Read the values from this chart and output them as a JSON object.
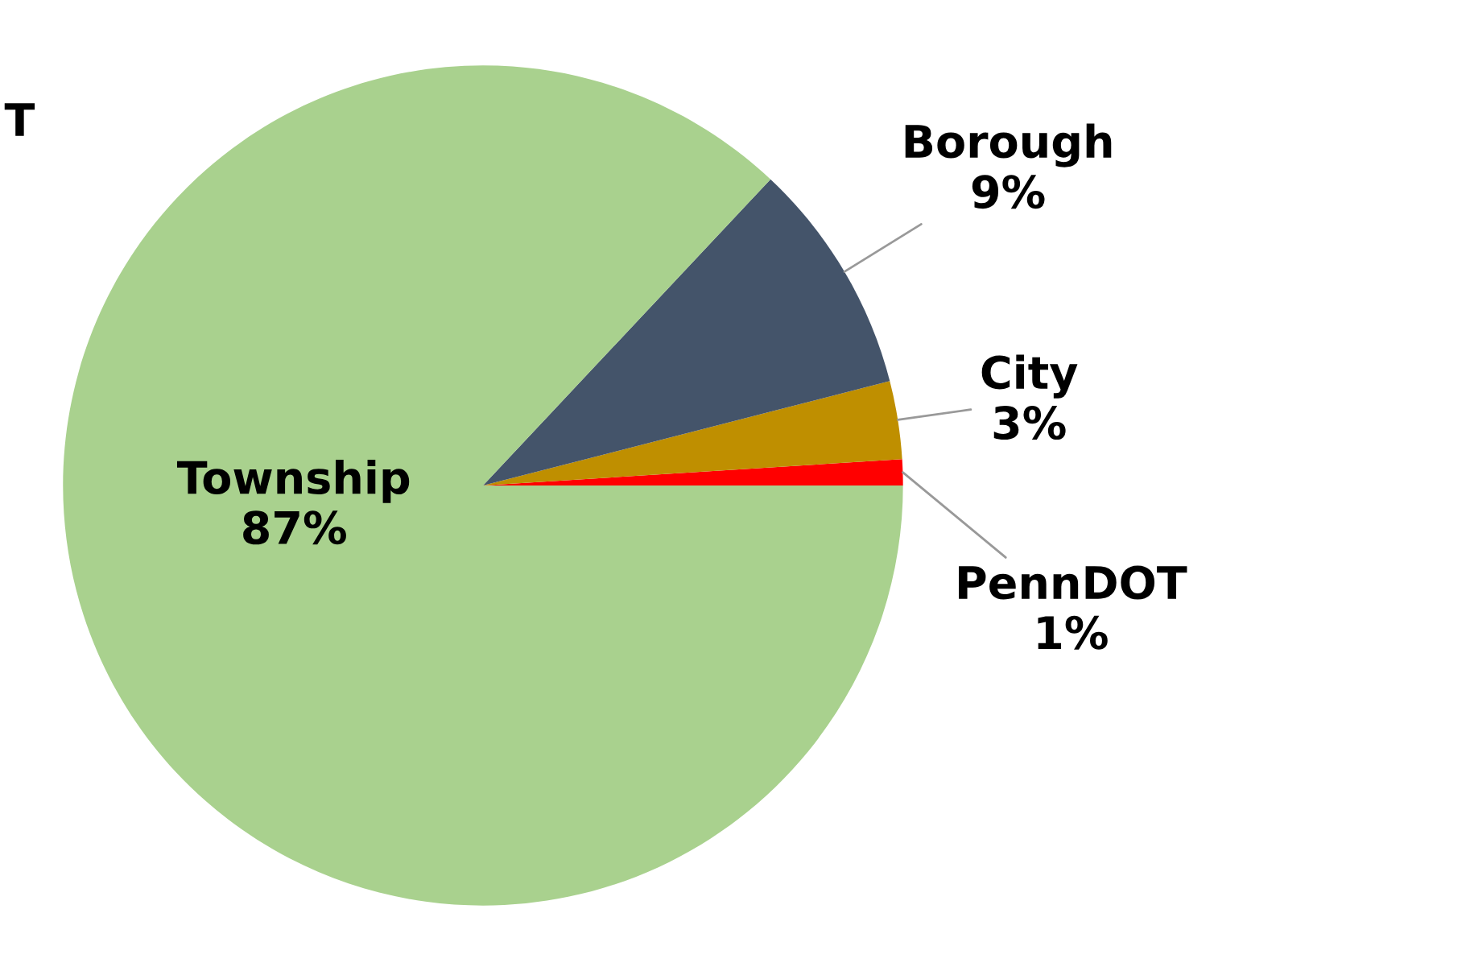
{
  "chart_data": {
    "type": "pie",
    "categories": [
      "PennDOT",
      "City",
      "Borough",
      "Township"
    ],
    "values": [
      1,
      3,
      9,
      87
    ],
    "value_labels": [
      "1%",
      "3%",
      "9%",
      "87%"
    ],
    "colors": [
      "#ff0000",
      "#bf8f00",
      "#44546a",
      "#a9d18e"
    ],
    "annotations": [
      "T"
    ],
    "legend": false
  }
}
